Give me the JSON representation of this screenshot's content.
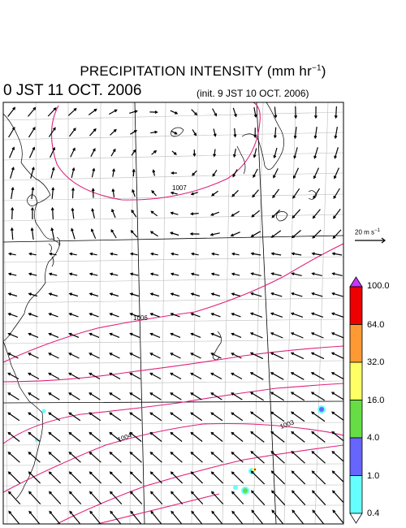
{
  "header": {
    "title": "PRECIPITATION INTENSITY (mm hr",
    "title_sup": "−1",
    "title_close": ")",
    "valid_time": "0 JST 11 OCT. 2006",
    "init_time": "(init. 9 JST 10 OCT. 2006)"
  },
  "reference_vector": {
    "label": "20 m s",
    "label_sup": "−1"
  },
  "isobars": [
    {
      "value": "1007",
      "color": "#e0207a"
    },
    {
      "value": "1006",
      "color": "#e0207a"
    },
    {
      "value": "1004",
      "color": "#e0207a"
    },
    {
      "value": "1003",
      "color": "#e0207a"
    }
  ],
  "colorbar": {
    "labels": [
      "100.0",
      "64.0",
      "32.0",
      "16.0",
      "4.0",
      "1.0",
      "0.4"
    ],
    "colors": [
      "#cc33ff",
      "#ee0000",
      "#ff9933",
      "#ffff66",
      "#66dd44",
      "#6666ff",
      "#66ffff",
      "#ffffff"
    ]
  }
}
